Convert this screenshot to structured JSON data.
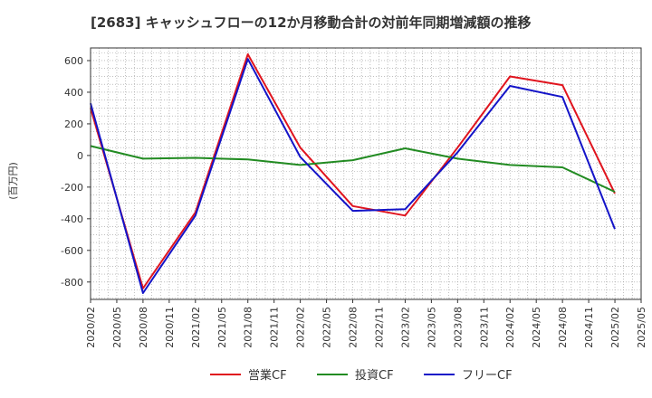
{
  "chart_data": {
    "type": "line",
    "title": "[2683]  キャッシュフローの12か月移動合計の対前年同期増減額の推移",
    "ylabel": "(百万円)",
    "xlabel": "",
    "ylim": [
      -910,
      680
    ],
    "yticks": [
      600,
      400,
      200,
      0,
      -200,
      -400,
      -600,
      -800
    ],
    "xticks": [
      "2020/02",
      "2020/05",
      "2020/08",
      "2020/11",
      "2021/02",
      "2021/05",
      "2021/08",
      "2021/11",
      "2022/02",
      "2022/05",
      "2022/08",
      "2022/11",
      "2023/02",
      "2023/05",
      "2023/08",
      "2023/11",
      "2024/02",
      "2024/05",
      "2024/08",
      "2024/11",
      "2025/02",
      "2025/05"
    ],
    "grid": true,
    "legend_position": "bottom",
    "series": [
      {
        "name": "営業CF",
        "color": "#e0141e",
        "points": [
          [
            "2020/02",
            300
          ],
          [
            "2020/08",
            -840
          ],
          [
            "2021/02",
            -360
          ],
          [
            "2021/08",
            640
          ],
          [
            "2022/02",
            50
          ],
          [
            "2022/08",
            -320
          ],
          [
            "2023/02",
            -380
          ],
          [
            "2023/08",
            50
          ],
          [
            "2024/02",
            500
          ],
          [
            "2024/08",
            445
          ],
          [
            "2025/02",
            -240
          ]
        ]
      },
      {
        "name": "投資CF",
        "color": "#228b22",
        "points": [
          [
            "2020/02",
            60
          ],
          [
            "2020/08",
            -20
          ],
          [
            "2021/02",
            -15
          ],
          [
            "2021/08",
            -25
          ],
          [
            "2022/02",
            -60
          ],
          [
            "2022/08",
            -30
          ],
          [
            "2023/02",
            45
          ],
          [
            "2023/08",
            -20
          ],
          [
            "2024/02",
            -60
          ],
          [
            "2024/08",
            -75
          ],
          [
            "2025/02",
            -230
          ]
        ]
      },
      {
        "name": "フリーCF",
        "color": "#1414c8",
        "points": [
          [
            "2020/02",
            330
          ],
          [
            "2020/08",
            -870
          ],
          [
            "2021/02",
            -380
          ],
          [
            "2021/08",
            610
          ],
          [
            "2022/02",
            -10
          ],
          [
            "2022/08",
            -350
          ],
          [
            "2023/02",
            -340
          ],
          [
            "2023/08",
            20
          ],
          [
            "2024/02",
            440
          ],
          [
            "2024/08",
            370
          ],
          [
            "2025/02",
            -465
          ]
        ]
      }
    ]
  }
}
